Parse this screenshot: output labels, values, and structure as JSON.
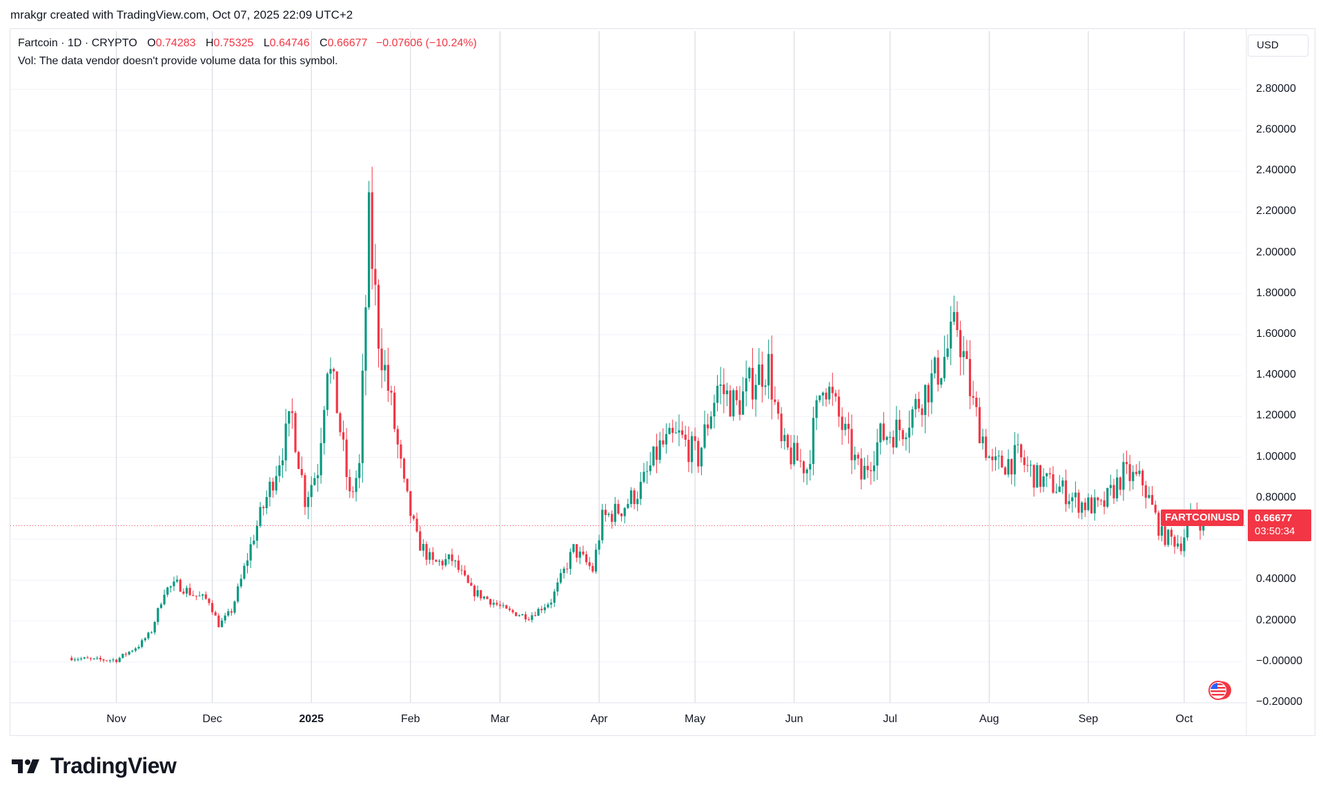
{
  "header": {
    "credit": "mrakgr created with TradingView.com, Oct 07, 2025 22:09 UTC+2"
  },
  "legend": {
    "symbol": "Fartcoin · 1D · CRYPTO",
    "open_label": "O",
    "open": "0.74283",
    "high_label": "H",
    "high": "0.75325",
    "low_label": "L",
    "low": "0.64746",
    "close_label": "C",
    "close": "0.66677",
    "change": "−0.07606 (−10.24%)",
    "volume_note": "Vol: The data vendor doesn't provide volume data for this symbol."
  },
  "currency_button": "USD",
  "price_tag": {
    "symbol": "FARTCOINUSD",
    "price": "0.66677",
    "countdown": "03:50:34"
  },
  "brand": {
    "name": "TradingView"
  },
  "colors": {
    "up": "#089981",
    "down": "#f23645",
    "grid": "#f0f3fa",
    "month_line": "#d1d4dc",
    "text": "#131722"
  },
  "chart_data": {
    "type": "candlestick",
    "title": "Fartcoin · 1D · CRYPTO",
    "ylim": [
      -0.2,
      2.9
    ],
    "y_ticks": [
      "2.80000",
      "2.60000",
      "2.40000",
      "2.20000",
      "2.00000",
      "1.80000",
      "1.60000",
      "1.40000",
      "1.20000",
      "1.00000",
      "0.80000",
      "0.60000",
      "0.40000",
      "0.20000",
      "−0.00000",
      "−0.20000"
    ],
    "x_ticks": [
      "Nov",
      "Dec",
      "2025",
      "Feb",
      "Mar",
      "Apr",
      "May",
      "Jun",
      "Jul",
      "Aug",
      "Sep",
      "Oct"
    ],
    "last_price": 0.66677,
    "series": [
      {
        "date": "2024-10-18",
        "close": 0.02
      },
      {
        "date": "2024-10-25",
        "close": 0.01
      },
      {
        "date": "2024-11-01",
        "close": 0.01
      },
      {
        "date": "2024-11-08",
        "close": 0.08
      },
      {
        "date": "2024-11-12",
        "close": 0.15
      },
      {
        "date": "2024-11-16",
        "close": 0.35
      },
      {
        "date": "2024-11-20",
        "close": 0.38
      },
      {
        "date": "2024-11-25",
        "close": 0.33
      },
      {
        "date": "2024-11-30",
        "close": 0.3
      },
      {
        "date": "2024-12-03",
        "close": 0.18
      },
      {
        "date": "2024-12-07",
        "close": 0.25
      },
      {
        "date": "2024-12-10",
        "close": 0.4
      },
      {
        "date": "2024-12-14",
        "close": 0.62
      },
      {
        "date": "2024-12-19",
        "close": 0.85
      },
      {
        "date": "2024-12-22",
        "close": 1.0
      },
      {
        "date": "2024-12-26",
        "close": 1.2
      },
      {
        "date": "2024-12-30",
        "close": 0.8
      },
      {
        "date": "2025-01-03",
        "close": 0.95
      },
      {
        "date": "2025-01-06",
        "close": 1.48
      },
      {
        "date": "2025-01-09",
        "close": 1.25
      },
      {
        "date": "2025-01-13",
        "close": 0.8
      },
      {
        "date": "2025-01-16",
        "close": 0.95
      },
      {
        "date": "2025-01-19",
        "close": 2.15
      },
      {
        "date": "2025-01-22",
        "close": 1.6
      },
      {
        "date": "2025-01-26",
        "close": 1.25
      },
      {
        "date": "2025-01-30",
        "close": 0.85
      },
      {
        "date": "2025-02-03",
        "close": 0.6
      },
      {
        "date": "2025-02-08",
        "close": 0.48
      },
      {
        "date": "2025-02-14",
        "close": 0.5
      },
      {
        "date": "2025-02-20",
        "close": 0.35
      },
      {
        "date": "2025-02-26",
        "close": 0.3
      },
      {
        "date": "2025-03-03",
        "close": 0.25
      },
      {
        "date": "2025-03-10",
        "close": 0.22
      },
      {
        "date": "2025-03-17",
        "close": 0.3
      },
      {
        "date": "2025-03-24",
        "close": 0.55
      },
      {
        "date": "2025-03-30",
        "close": 0.45
      },
      {
        "date": "2025-04-02",
        "close": 0.7
      },
      {
        "date": "2025-04-08",
        "close": 0.75
      },
      {
        "date": "2025-04-14",
        "close": 0.85
      },
      {
        "date": "2025-04-20",
        "close": 1.05
      },
      {
        "date": "2025-04-26",
        "close": 1.1
      },
      {
        "date": "2025-05-02",
        "close": 1.0
      },
      {
        "date": "2025-05-08",
        "close": 1.35
      },
      {
        "date": "2025-05-14",
        "close": 1.25
      },
      {
        "date": "2025-05-20",
        "close": 1.4
      },
      {
        "date": "2025-05-24",
        "close": 1.45
      },
      {
        "date": "2025-05-28",
        "close": 1.05
      },
      {
        "date": "2025-06-05",
        "close": 0.95
      },
      {
        "date": "2025-06-10",
        "close": 1.4
      },
      {
        "date": "2025-06-16",
        "close": 1.15
      },
      {
        "date": "2025-06-22",
        "close": 0.9
      },
      {
        "date": "2025-06-28",
        "close": 1.1
      },
      {
        "date": "2025-07-05",
        "close": 1.15
      },
      {
        "date": "2025-07-11",
        "close": 1.3
      },
      {
        "date": "2025-07-17",
        "close": 1.45
      },
      {
        "date": "2025-07-22",
        "close": 1.65
      },
      {
        "date": "2025-07-27",
        "close": 1.25
      },
      {
        "date": "2025-08-02",
        "close": 0.95
      },
      {
        "date": "2025-08-10",
        "close": 1.0
      },
      {
        "date": "2025-08-16",
        "close": 0.9
      },
      {
        "date": "2025-08-23",
        "close": 0.85
      },
      {
        "date": "2025-08-29",
        "close": 0.78
      },
      {
        "date": "2025-09-05",
        "close": 0.75
      },
      {
        "date": "2025-09-12",
        "close": 0.92
      },
      {
        "date": "2025-09-18",
        "close": 0.88
      },
      {
        "date": "2025-09-24",
        "close": 0.62
      },
      {
        "date": "2025-09-30",
        "close": 0.58
      },
      {
        "date": "2025-10-04",
        "close": 0.74
      },
      {
        "date": "2025-10-07",
        "close": 0.66677
      }
    ]
  }
}
